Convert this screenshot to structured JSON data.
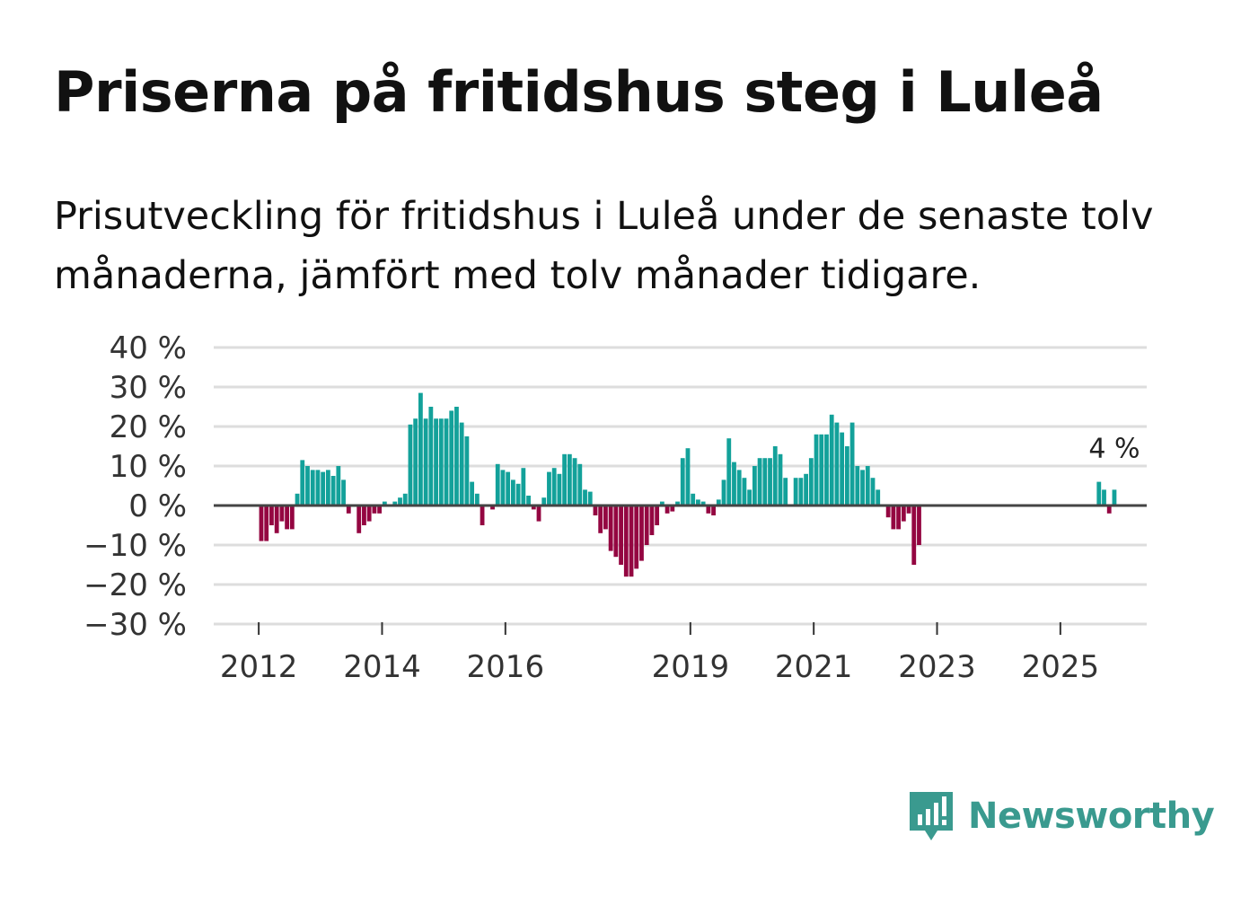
{
  "header": {
    "title": "Priserna på fritidshus steg i Luleå",
    "subtitle": "Prisutveckling för fritidshus i Luleå under de senaste tolv månaderna, jämfört med tolv månader tidigare."
  },
  "brand": {
    "name": "Newsworthy",
    "logo_icon": "bar-chart-speech-bubble-icon"
  },
  "colors": {
    "positive": "#13a19a",
    "negative": "#940641",
    "grid": "#dddddd",
    "zero_line": "#444444",
    "brand": "#3a9a8f"
  },
  "chart_data": {
    "type": "bar",
    "title": "Priserna på fritidshus steg i Luleå",
    "xlabel": "",
    "ylabel": "",
    "ylim": [
      -30,
      40
    ],
    "y_ticks": [
      40,
      30,
      20,
      10,
      0,
      -10,
      -20,
      -30
    ],
    "y_tick_labels": [
      "40 %",
      "30 %",
      "20 %",
      "10 %",
      "0 %",
      "−10 %",
      "−20 %",
      "−30 %"
    ],
    "x_ticks": [
      2012,
      2014,
      2016,
      2019,
      2021,
      2023,
      2025
    ],
    "x_tick_labels": [
      "2012",
      "2014",
      "2016",
      "2019",
      "2021",
      "2023",
      "2025"
    ],
    "x_range": [
      2011.27,
      2026.4
    ],
    "period": "monthly, starting 2012-01",
    "values": [
      -9,
      -9,
      -5,
      -7,
      -4,
      -6,
      -6,
      3,
      11.5,
      10,
      9,
      9,
      8.5,
      9,
      7.5,
      10,
      6.5,
      -2,
      null,
      -7,
      -5,
      -4,
      -2,
      -2,
      1,
      null,
      1,
      2,
      3,
      20.5,
      22,
      28.5,
      22,
      25,
      22,
      22,
      22,
      24,
      25,
      21,
      17.5,
      6,
      3,
      -5,
      null,
      -1,
      10.5,
      9,
      8.5,
      6.5,
      5.5,
      9.5,
      2.5,
      -1,
      -4,
      2,
      8.5,
      9.5,
      8,
      13,
      13,
      12,
      10.5,
      4,
      3.5,
      -2.5,
      -7,
      -6,
      -11.5,
      -13,
      -15,
      -18,
      -18,
      -16,
      -14,
      -10,
      -7.5,
      -5,
      1,
      -2,
      -1.5,
      1,
      12,
      14.5,
      3,
      1.5,
      1,
      -2,
      -2.5,
      1.5,
      6.5,
      17,
      11,
      9,
      7,
      4,
      10,
      12,
      12,
      12,
      15,
      13,
      7,
      null,
      7,
      7,
      8,
      12,
      18,
      18,
      18,
      23,
      21,
      18.5,
      15,
      21,
      10,
      9,
      10,
      7,
      4,
      null,
      -3,
      -6,
      -6,
      -4,
      -2,
      -15,
      -10,
      null,
      null,
      null,
      null,
      null,
      null,
      null,
      null,
      null,
      null,
      null,
      null,
      null,
      null,
      null,
      null,
      null,
      null,
      null,
      null,
      null,
      null,
      null,
      null,
      null,
      null,
      null,
      null,
      null,
      null,
      null,
      null,
      null,
      null,
      6,
      4,
      -2,
      4
    ],
    "annotations": [
      {
        "text": "4 %",
        "at": "last value"
      }
    ],
    "grid": "horizontal"
  }
}
